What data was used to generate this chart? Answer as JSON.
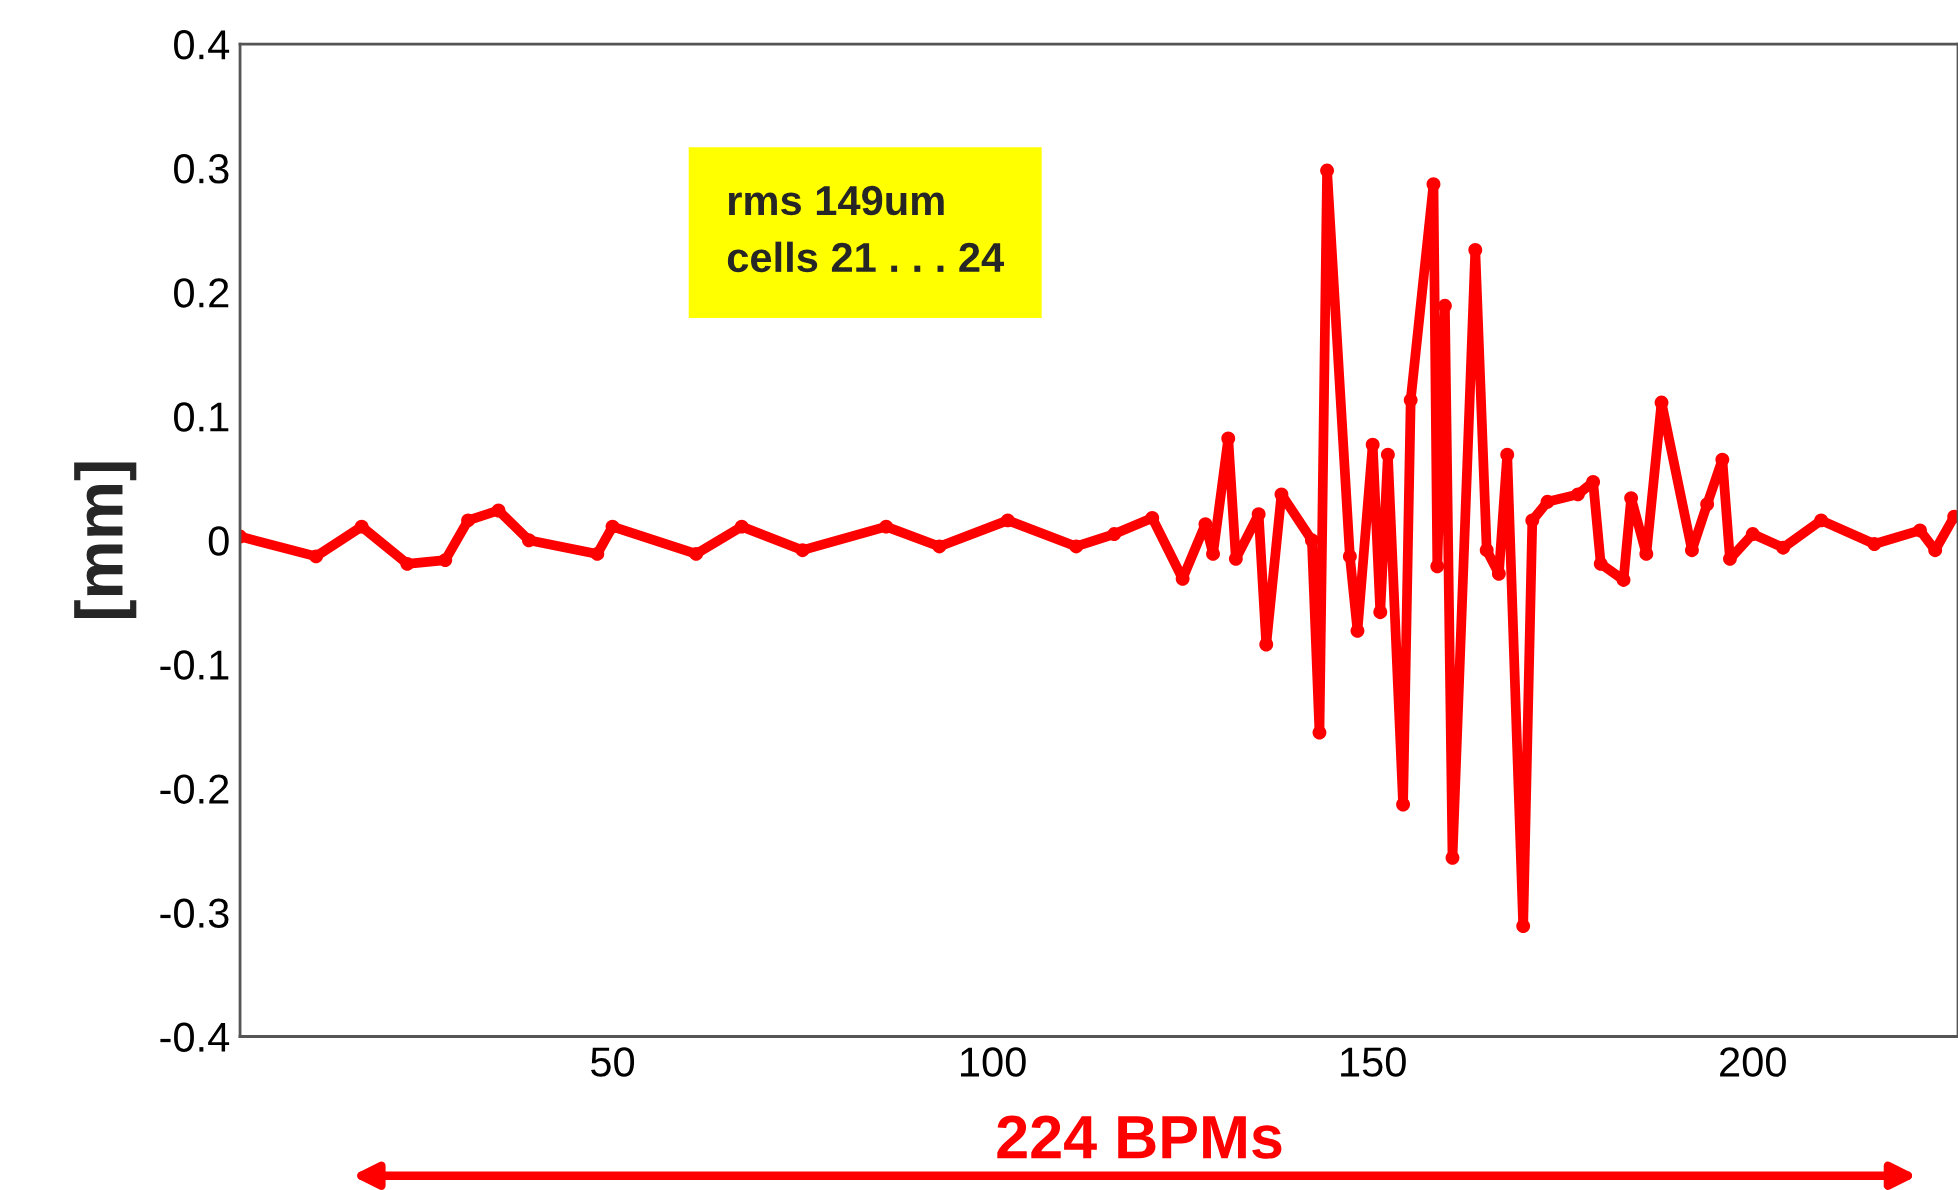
{
  "chart_data": {
    "type": "line",
    "ylabel": "[mm]",
    "x": [
      1,
      11,
      17,
      23,
      28,
      31,
      35,
      39,
      48,
      50,
      61,
      67,
      75,
      86,
      93,
      102,
      111,
      116,
      121,
      125,
      128,
      129,
      131,
      132,
      135,
      136,
      138,
      142,
      143,
      144,
      147,
      148,
      150,
      151,
      152,
      154,
      155,
      158,
      158.5,
      159.5,
      160.5,
      163.5,
      165,
      166.6,
      167.7,
      169.8,
      171,
      173,
      177,
      179,
      180,
      183,
      184,
      186,
      188,
      192,
      194,
      196,
      197,
      200,
      204,
      209,
      216,
      222,
      224,
      226.5
    ],
    "series": [
      {
        "color": "#ff0000",
        "values": [
          0.003,
          -0.013,
          0.011,
          -0.019,
          -0.016,
          0.016,
          0.024,
          0,
          -0.011,
          0.011,
          -0.011,
          0.011,
          -0.008,
          0.011,
          -0.005,
          0.016,
          -0.005,
          0.005,
          0.018,
          -0.031,
          0.013,
          -0.011,
          0.082,
          -0.015,
          0.021,
          -0.084,
          0.037,
          0,
          -0.155,
          0.298,
          -0.013,
          -0.073,
          0.077,
          -0.058,
          0.069,
          -0.213,
          0.113,
          0.287,
          -0.021,
          0.189,
          -0.256,
          0.234,
          -0.008,
          -0.027,
          0.069,
          -0.311,
          0.016,
          0.031,
          0.037,
          0.047,
          -0.019,
          -0.032,
          0.034,
          -0.011,
          0.111,
          -0.008,
          0.029,
          0.065,
          -0.015,
          0.005,
          -0.006,
          0.016,
          -0.003,
          0.008,
          -0.008,
          0.019
        ]
      }
    ],
    "xlim": [
      1,
      227
    ],
    "ylim": [
      -0.4,
      0.4
    ],
    "xticks": [
      50,
      100,
      150,
      200
    ],
    "yticks": [
      -0.4,
      -0.3,
      -0.2,
      -0.1,
      0,
      0.1,
      0.2,
      0.3,
      0.4
    ],
    "marker": "circle",
    "line_style": "solid",
    "grid": false,
    "legend": false,
    "annotations": [
      "rms 149um\ncells 21 . . . 24",
      "224 BPMs"
    ]
  }
}
